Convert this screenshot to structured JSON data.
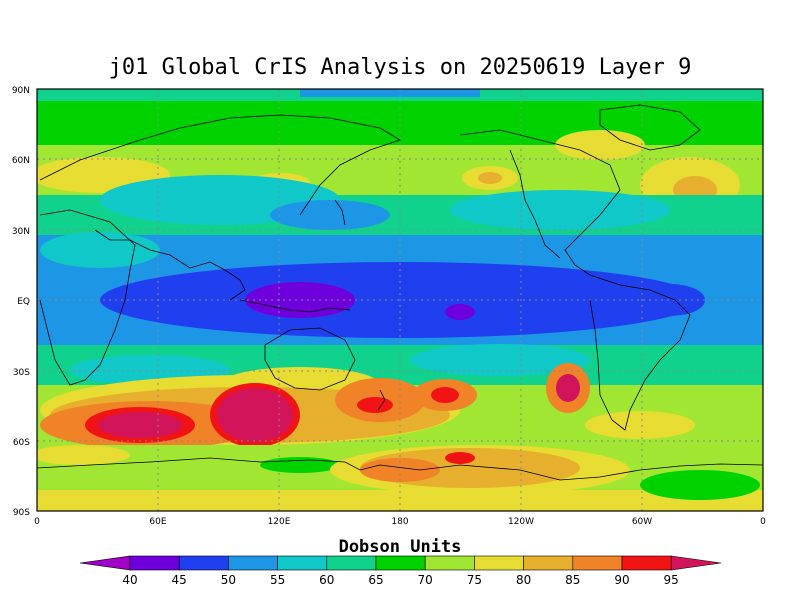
{
  "title": "j01 Global CrIS Analysis on 20250619 Layer 9",
  "lat_labels": [
    "90N",
    "60N",
    "30N",
    "EQ",
    "30S",
    "60S",
    "90S"
  ],
  "lon_labels": [
    "0",
    "60E",
    "120E",
    "180",
    "120W",
    "60W",
    "0"
  ],
  "colorbar": {
    "title": "Dobson Units",
    "levels": [
      40,
      45,
      50,
      55,
      60,
      65,
      70,
      75,
      80,
      85,
      90,
      95
    ],
    "colors": [
      "#a000c8",
      "#6e00dc",
      "#2040f0",
      "#1e96e6",
      "#10c8c8",
      "#10d28c",
      "#00d200",
      "#a0e632",
      "#e6dc32",
      "#e6af2d",
      "#f08228",
      "#f01414",
      "#d2145a"
    ]
  }
}
